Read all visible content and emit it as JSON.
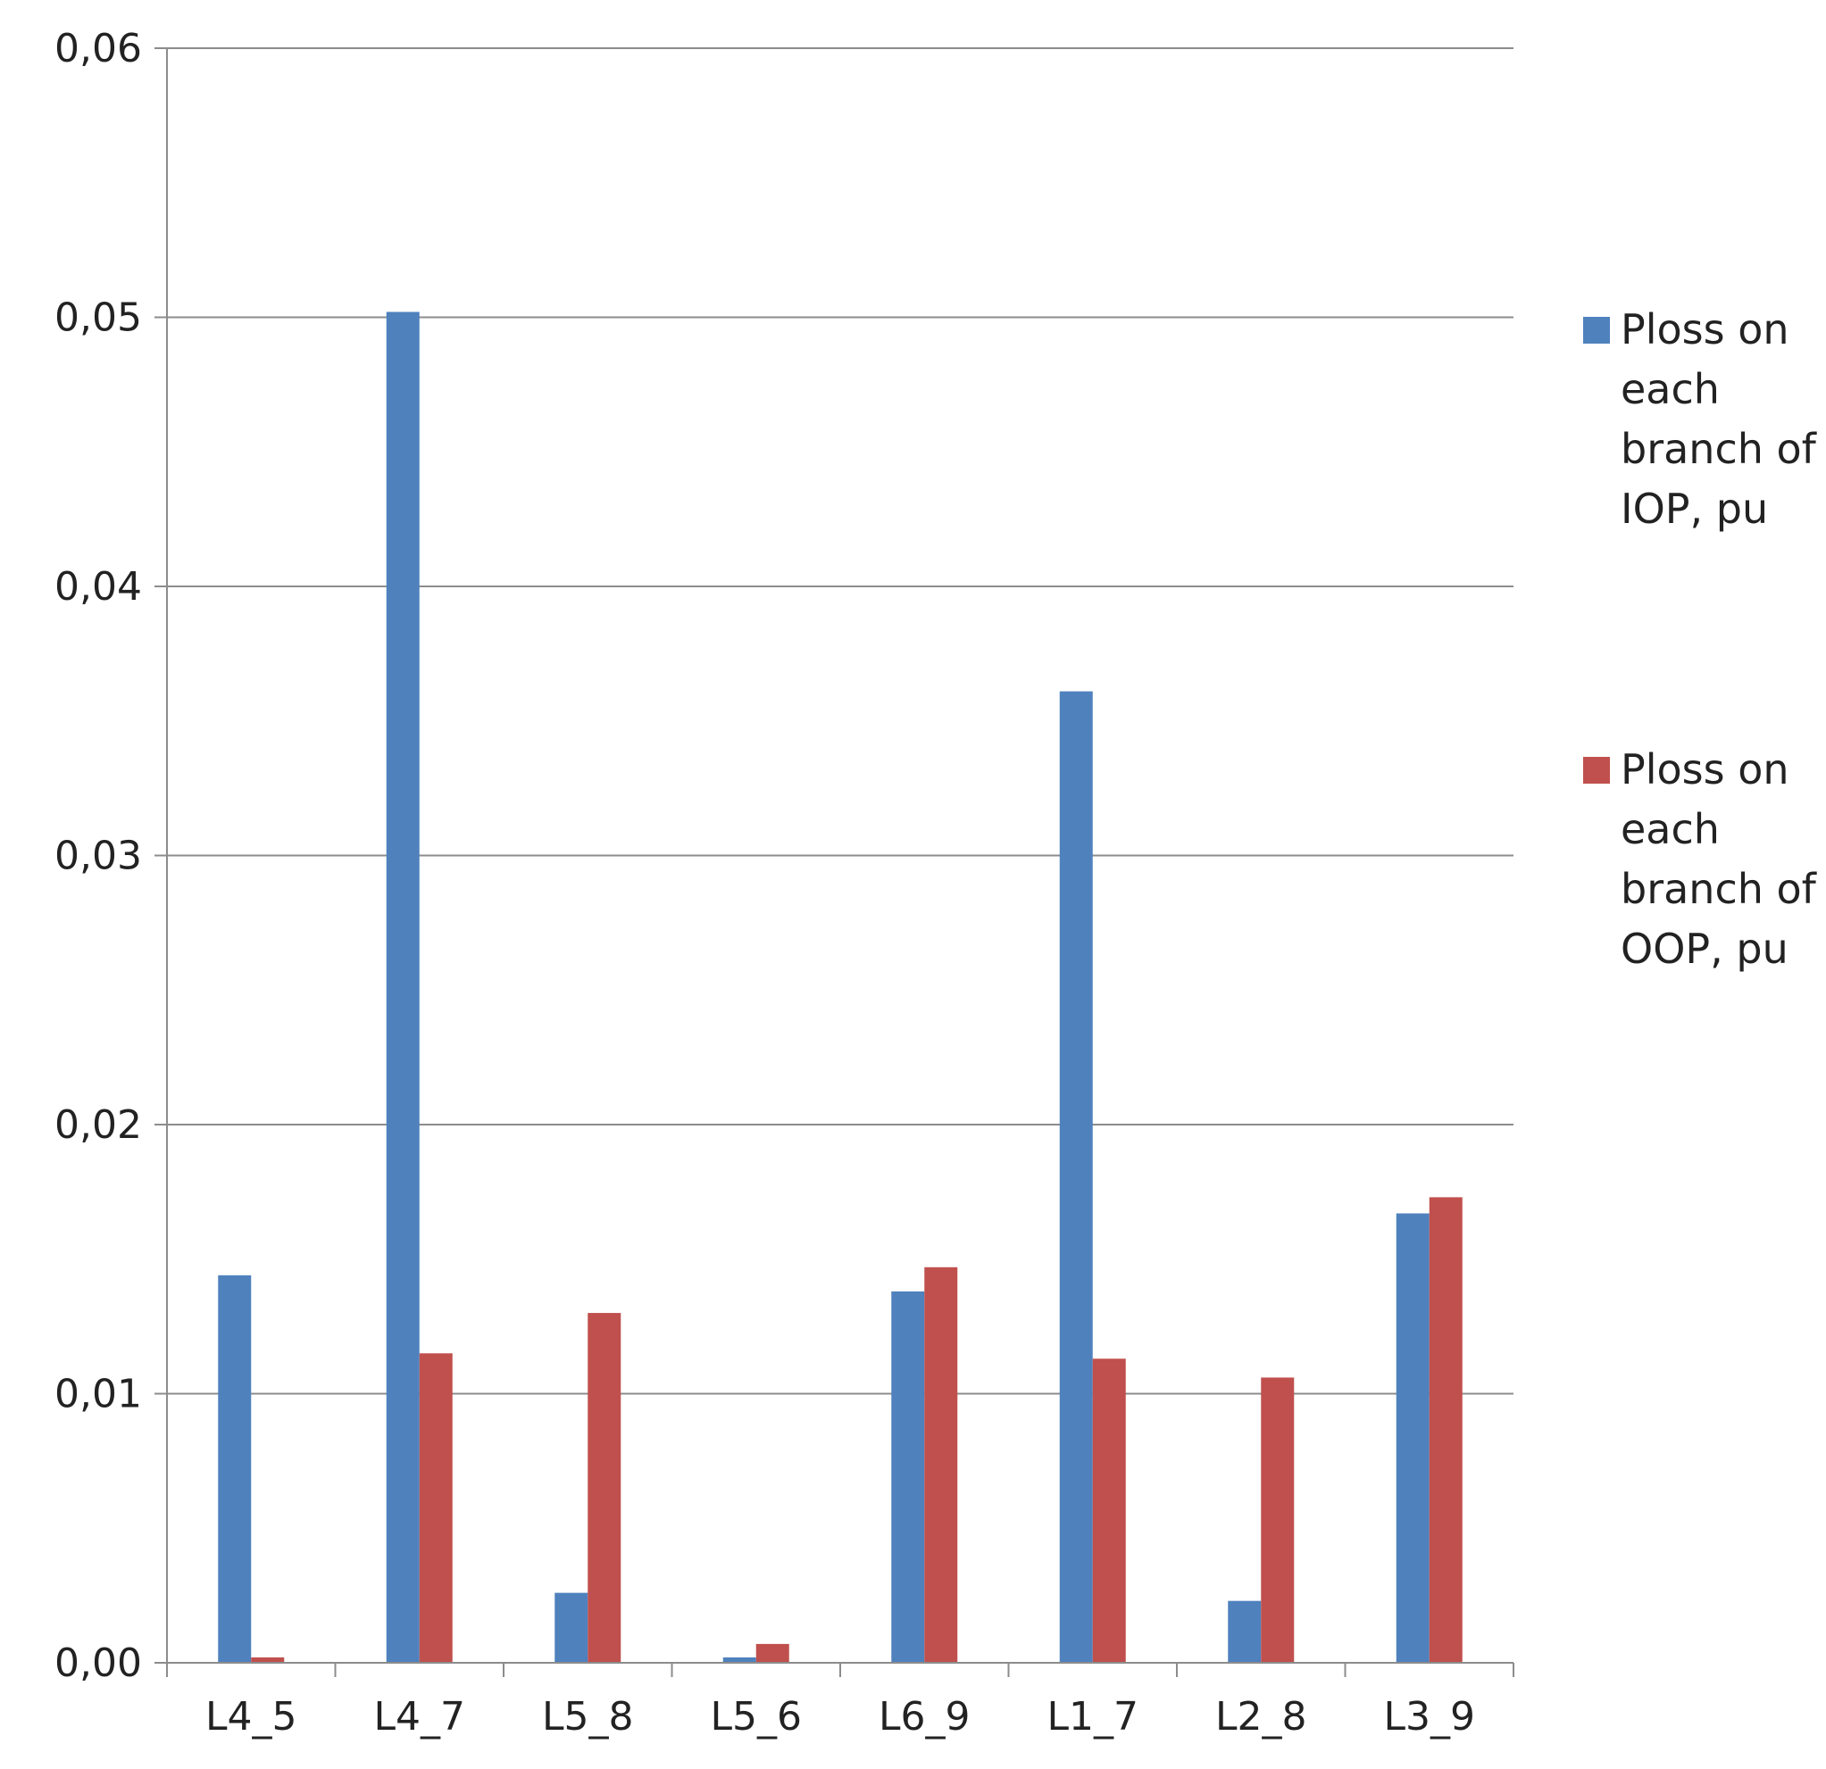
{
  "chart_data": {
    "type": "bar",
    "title": "",
    "xlabel": "",
    "ylabel": "",
    "categories": [
      "L4_5",
      "L4_7",
      "L5_8",
      "L5_6",
      "L6_9",
      "L1_7",
      "L2_8",
      "L3_9"
    ],
    "series": [
      {
        "name_lines": [
          "Ploss on",
          "each",
          "branch of",
          "IOP, pu"
        ],
        "color": "#4f81bd",
        "values": [
          0.0144,
          0.0502,
          0.0026,
          0.0002,
          0.0138,
          0.0361,
          0.0023,
          0.0167
        ]
      },
      {
        "name_lines": [
          "Ploss on",
          "each",
          "branch of",
          "OOP, pu"
        ],
        "color": "#c0504d",
        "values": [
          0.0002,
          0.0115,
          0.013,
          0.0007,
          0.0147,
          0.0113,
          0.0106,
          0.0173
        ]
      }
    ],
    "ylim": [
      0,
      0.06
    ],
    "yticks": [
      "0,00",
      "0,01",
      "0,02",
      "0,03",
      "0,04",
      "0,05",
      "0,06"
    ],
    "grid": true,
    "legend_position": "right"
  }
}
